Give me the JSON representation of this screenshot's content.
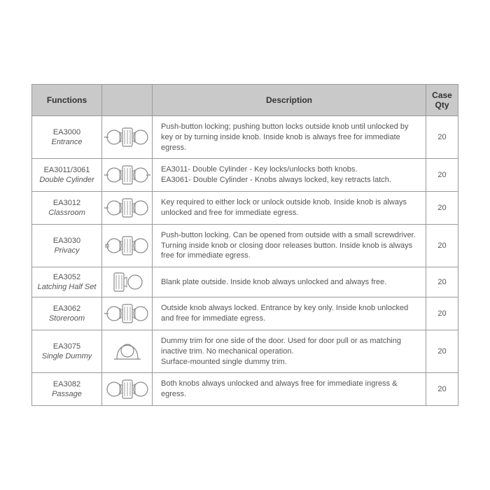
{
  "table": {
    "headers": {
      "functions": "Functions",
      "icon": "",
      "description": "Description",
      "qty": "Case Qty"
    },
    "colors": {
      "header_bg": "#c9c9c9",
      "border": "#9a9a9a",
      "text": "#555555",
      "icon_stroke": "#888888"
    },
    "fontsize": {
      "header": 12,
      "cell": 11
    },
    "rows": [
      {
        "code": "EA3000",
        "name": "Entrance",
        "icon": "double-knob-key",
        "desc": "Push-button locking; pushing button locks outside knob until unlocked by key or by turning inside knob. Inside knob is always free for immediate egress.",
        "qty": "20"
      },
      {
        "code": "EA3011/3061",
        "name": "Double Cylinder",
        "icon": "double-knob-key-both",
        "desc": "EA3011- Double Cylinder - Key locks/unlocks both knobs.\nEA3061- Double Cylinder - Knobs always locked, key retracts latch.",
        "qty": "20"
      },
      {
        "code": "EA3012",
        "name": "Classroom",
        "icon": "double-knob-key",
        "desc": "Key required to either lock or unlock outside knob. Inside knob is always unlocked and free for immediate egress.",
        "qty": "20"
      },
      {
        "code": "EA3030",
        "name": "Privacy",
        "icon": "double-knob-push",
        "desc": "Push-button locking. Can be opened from outside with a small screwdriver. Turning inside knob or closing door releases button. Inside knob is always free for immediate egress.",
        "qty": "20"
      },
      {
        "code": "EA3052",
        "name": "Latching Half Set",
        "icon": "half-set",
        "desc": "Blank plate outside. Inside knob always unlocked and always free.",
        "qty": "20"
      },
      {
        "code": "EA3062",
        "name": "Storeroom",
        "icon": "double-knob-key",
        "desc": "Outside knob always locked. Entrance by key only. Inside knob unlocked and free for immediate egress.",
        "qty": "20"
      },
      {
        "code": "EA3075",
        "name": "Single Dummy",
        "icon": "single-dummy",
        "desc": "Dummy trim for one side of the door. Used for door pull or as matching inactive trim. No mechanical operation.\nSurface-mounted single dummy trim.",
        "qty": "20"
      },
      {
        "code": "EA3082",
        "name": "Passage",
        "icon": "double-knob",
        "desc": "Both knobs always unlocked and always free for immediate ingress & egress.",
        "qty": "20"
      }
    ]
  }
}
